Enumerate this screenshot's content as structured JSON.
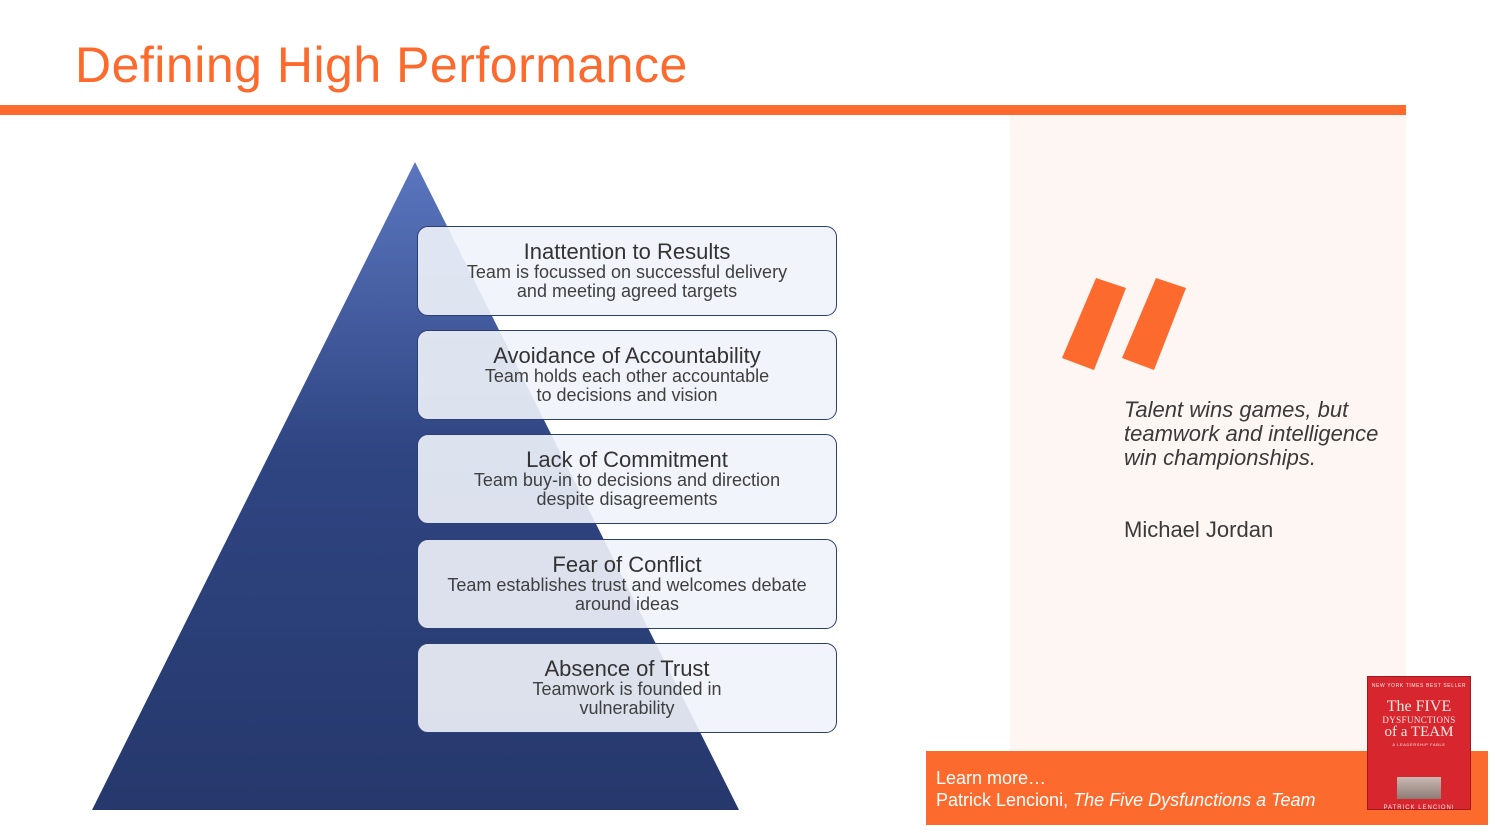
{
  "slide": {
    "title": "Defining High Performance",
    "accent_color": "#fd6a2e",
    "pyramid_color_top": "#5b76bf",
    "pyramid_color_bottom": "#26386c"
  },
  "levels": [
    {
      "heading": "Inattention to Results",
      "line1": "Team is focussed on successful delivery",
      "line2": "and meeting agreed targets"
    },
    {
      "heading": "Avoidance of Accountability",
      "line1": "Team holds each other accountable",
      "line2": "to decisions and vision"
    },
    {
      "heading": "Lack of Commitment",
      "line1": "Team buy-in to decisions and direction",
      "line2": "despite disagreements"
    },
    {
      "heading": "Fear of Conflict",
      "line1": "Team establishes trust and welcomes debate",
      "line2": "around ideas"
    },
    {
      "heading": "Absence of Trust",
      "line1": "Teamwork is founded in",
      "line2": "vulnerability"
    }
  ],
  "quote": {
    "icon": "quotation-mark-icon",
    "text": "Talent wins games, but teamwork and intelligence win championships.",
    "author": "Michael Jordan"
  },
  "learn_more": {
    "label": "Learn more…",
    "author": "Patrick Lencioni, ",
    "book_title": "The Five Dysfunctions a Team"
  },
  "book_cover": {
    "banner": "NEW YORK TIMES BEST SELLER",
    "line1": "The FIVE",
    "line2": "DYSFUNCTIONS",
    "line3": "of a TEAM",
    "subtitle": "A LEADERSHIP FABLE",
    "author": "PATRICK LENCIONI"
  }
}
